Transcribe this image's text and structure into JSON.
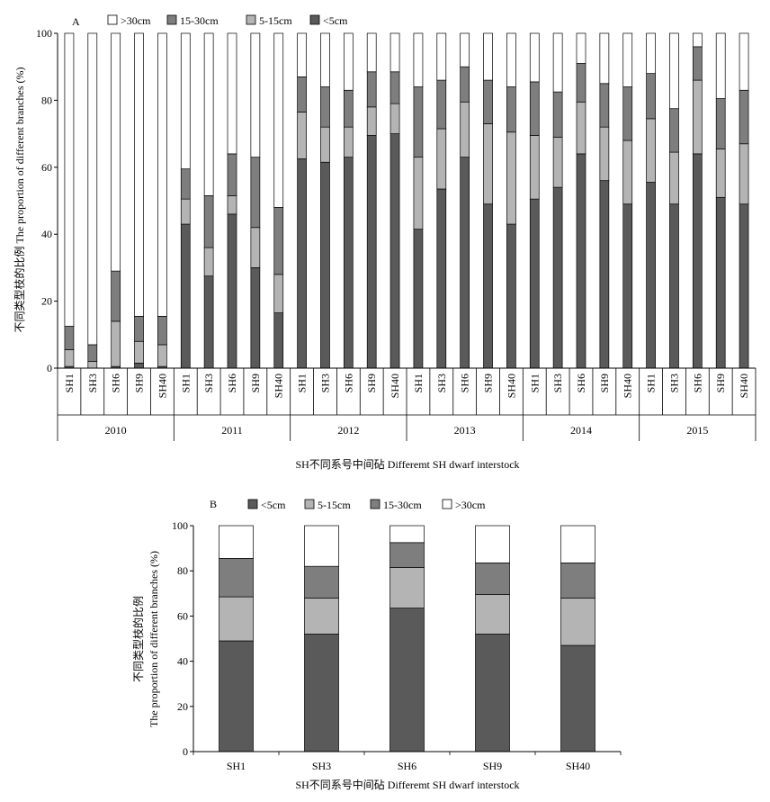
{
  "chart_data": [
    {
      "type": "bar",
      "stacked": true,
      "panel_label": "A",
      "xlabel": "SH不同系号中间砧 Differemt SH dwarf interstock",
      "ylabel": "不同类型枝的比例 The proportion of different branches (%)",
      "ylim": [
        0,
        100
      ],
      "yticks": [
        0,
        20,
        40,
        60,
        80,
        100
      ],
      "grid": false,
      "legend_position": "top",
      "legend": [
        ">30cm",
        "15-30cm",
        "5-15cm",
        "<5cm"
      ],
      "groups": [
        {
          "label": "2010",
          "categories": [
            "SH1",
            "SH3",
            "SH6",
            "SH9",
            "SH40"
          ]
        },
        {
          "label": "2011",
          "categories": [
            "SH1",
            "SH3",
            "SH6",
            "SH9",
            "SH40"
          ]
        },
        {
          "label": "2012",
          "categories": [
            "SH1",
            "SH3",
            "SH6",
            "SH9",
            "SH40"
          ]
        },
        {
          "label": "2013",
          "categories": [
            "SH1",
            "SH3",
            "SH6",
            "SH9",
            "SH40"
          ]
        },
        {
          "label": "2014",
          "categories": [
            "SH1",
            "SH3",
            "SH6",
            "SH9",
            "SH40"
          ]
        },
        {
          "label": "2015",
          "categories": [
            "SH1",
            "SH3",
            "SH6",
            "SH9",
            "SH40"
          ]
        }
      ],
      "series": [
        {
          "name": "<5cm",
          "color": "#5a5a5a",
          "values": [
            0.5,
            0,
            0.5,
            1.5,
            0.5,
            43,
            27.5,
            46,
            30,
            16.5,
            62.5,
            61.5,
            63,
            69.5,
            70,
            41.5,
            53.5,
            63,
            49,
            43,
            50.5,
            54,
            64,
            56,
            49,
            55.5,
            49,
            64,
            51,
            49
          ]
        },
        {
          "name": "5-15cm",
          "color": "#b4b4b4",
          "values": [
            5,
            2,
            13.5,
            6.5,
            6.5,
            7.5,
            8.5,
            5.5,
            12,
            11.5,
            14,
            10.5,
            9,
            8.5,
            9,
            21.5,
            18,
            16.5,
            24,
            27.5,
            19,
            15,
            15.5,
            16,
            19,
            19,
            15.5,
            22,
            14.5,
            18
          ]
        },
        {
          "name": "15-30cm",
          "color": "#7e7e7e",
          "values": [
            7,
            5,
            15,
            7.5,
            8.5,
            9,
            15.5,
            12.5,
            21,
            20,
            10.5,
            12,
            11,
            10.5,
            9.5,
            21,
            14.5,
            10.5,
            13,
            13.5,
            16,
            13.5,
            11.5,
            13,
            16,
            13.5,
            13,
            10,
            15,
            16
          ]
        },
        {
          "name": ">30cm",
          "color": "#ffffff",
          "values": [
            87.5,
            93,
            71,
            84.5,
            84.5,
            40.5,
            48.5,
            36,
            37,
            52,
            13,
            16,
            17,
            11.5,
            11.5,
            16,
            14,
            10,
            14,
            16,
            14.5,
            17.5,
            9,
            15,
            16,
            12,
            22.5,
            4,
            19.5,
            17
          ]
        }
      ]
    },
    {
      "type": "bar",
      "stacked": true,
      "panel_label": "B",
      "xlabel": "SH不同系号中间砧  Differemt SH dwarf interstock",
      "ylabel_line1": "不同类型枝的比例",
      "ylabel_line2": "The proportion of different branches (%)",
      "ylim": [
        0,
        100
      ],
      "yticks": [
        0,
        20,
        40,
        60,
        80,
        100
      ],
      "grid": false,
      "legend_position": "top",
      "legend": [
        "<5cm",
        "5-15cm",
        "15-30cm",
        ">30cm"
      ],
      "categories": [
        "SH1",
        "SH3",
        "SH6",
        "SH9",
        "SH40"
      ],
      "series": [
        {
          "name": "<5cm",
          "color": "#5a5a5a",
          "values": [
            49,
            52,
            63.5,
            52,
            47
          ]
        },
        {
          "name": "5-15cm",
          "color": "#b4b4b4",
          "values": [
            19.5,
            16,
            18,
            17.5,
            21
          ]
        },
        {
          "name": "15-30cm",
          "color": "#7e7e7e",
          "values": [
            17,
            14,
            11,
            14,
            15.5
          ]
        },
        {
          "name": ">30cm",
          "color": "#ffffff",
          "values": [
            14.5,
            18,
            7.5,
            16.5,
            16.5
          ]
        }
      ]
    }
  ]
}
